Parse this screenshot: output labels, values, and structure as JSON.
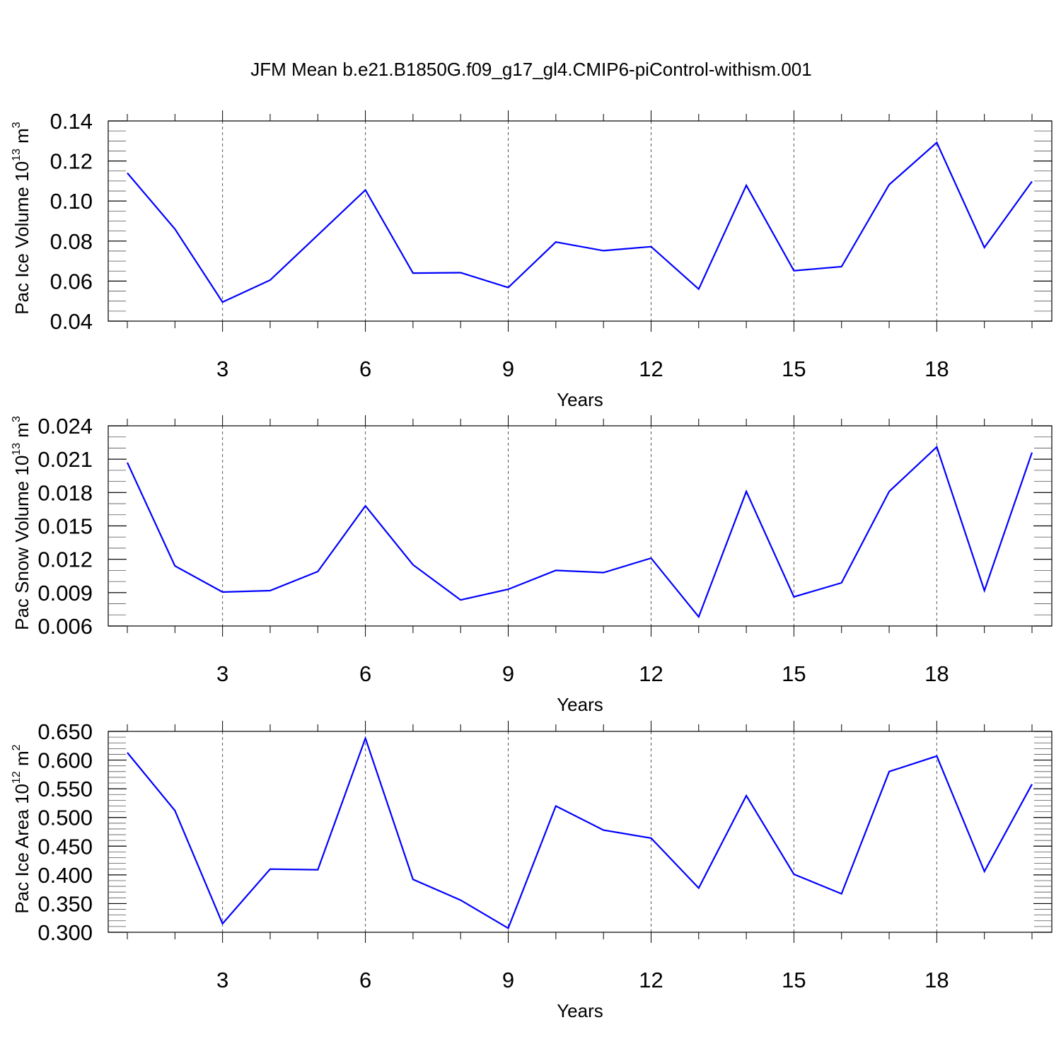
{
  "title": "JFM Mean b.e21.B1850G.f09_g17_gl4.CMIP6-piControl-withism.001",
  "colors": {
    "line": "#0000ff",
    "axis": "#000000",
    "grid": "#555555"
  },
  "chart_data": [
    {
      "type": "line",
      "xlabel": "Years",
      "ylabel_main": "Pac Ice Volume 10",
      "ylabel_exp": "13",
      "ylabel_unit": " m",
      "ylabel_unit_exp": "3",
      "xlim": [
        1,
        20
      ],
      "ylim": [
        0.04,
        0.14
      ],
      "yticks": [
        0.04,
        0.06,
        0.08,
        0.1,
        0.12,
        0.14
      ],
      "ytick_labels": [
        "0.04",
        "0.06",
        "0.08",
        "0.10",
        "0.12",
        "0.14"
      ],
      "yminor_step": 0.005,
      "xticks": [
        3,
        6,
        9,
        12,
        15,
        18
      ],
      "xtick_labels": [
        "3",
        "6",
        "9",
        "12",
        "15",
        "18"
      ],
      "x": [
        1,
        2,
        3,
        4,
        5,
        6,
        7,
        8,
        9,
        10,
        11,
        12,
        13,
        14,
        15,
        16,
        17,
        18,
        19,
        20
      ],
      "series": [
        {
          "name": "Pac Ice Volume",
          "values": [
            0.114,
            0.086,
            0.0495,
            0.0605,
            0.083,
            0.1055,
            0.064,
            0.0642,
            0.0568,
            0.0795,
            0.0752,
            0.0772,
            0.056,
            0.1078,
            0.0652,
            0.0672,
            0.1082,
            0.1292,
            0.0768,
            0.1098
          ]
        }
      ]
    },
    {
      "type": "line",
      "xlabel": "Years",
      "ylabel_main": "Pac Snow Volume 10",
      "ylabel_exp": "13",
      "ylabel_unit": " m",
      "ylabel_unit_exp": "3",
      "xlim": [
        1,
        20
      ],
      "ylim": [
        0.006,
        0.024
      ],
      "yticks": [
        0.006,
        0.009,
        0.012,
        0.015,
        0.018,
        0.021,
        0.024
      ],
      "ytick_labels": [
        "0.006",
        "0.009",
        "0.012",
        "0.015",
        "0.018",
        "0.021",
        "0.024"
      ],
      "yminor_step": 0.001,
      "xticks": [
        3,
        6,
        9,
        12,
        15,
        18
      ],
      "xtick_labels": [
        "3",
        "6",
        "9",
        "12",
        "15",
        "18"
      ],
      "x": [
        1,
        2,
        3,
        4,
        5,
        6,
        7,
        8,
        9,
        10,
        11,
        12,
        13,
        14,
        15,
        16,
        17,
        18,
        19,
        20
      ],
      "series": [
        {
          "name": "Pac Snow Volume",
          "values": [
            0.0207,
            0.0114,
            0.00905,
            0.00918,
            0.0109,
            0.0168,
            0.0115,
            0.00834,
            0.0093,
            0.011,
            0.0108,
            0.0121,
            0.00682,
            0.0181,
            0.00862,
            0.00988,
            0.0181,
            0.0221,
            0.00918,
            0.0216
          ]
        }
      ]
    },
    {
      "type": "line",
      "xlabel": "Years",
      "ylabel_main": "Pac Ice Area 10",
      "ylabel_exp": "12",
      "ylabel_unit": " m",
      "ylabel_unit_exp": "2",
      "xlim": [
        1,
        20
      ],
      "ylim": [
        0.3,
        0.65
      ],
      "yticks": [
        0.3,
        0.35,
        0.4,
        0.45,
        0.5,
        0.55,
        0.6,
        0.65
      ],
      "ytick_labels": [
        "0.300",
        "0.350",
        "0.400",
        "0.450",
        "0.500",
        "0.550",
        "0.600",
        "0.650"
      ],
      "yminor_step": 0.01,
      "xticks": [
        3,
        6,
        9,
        12,
        15,
        18
      ],
      "xtick_labels": [
        "3",
        "6",
        "9",
        "12",
        "15",
        "18"
      ],
      "x": [
        1,
        2,
        3,
        4,
        5,
        6,
        7,
        8,
        9,
        10,
        11,
        12,
        13,
        14,
        15,
        16,
        17,
        18,
        19,
        20
      ],
      "series": [
        {
          "name": "Pac Ice Area",
          "values": [
            0.613,
            0.512,
            0.315,
            0.41,
            0.409,
            0.638,
            0.392,
            0.356,
            0.307,
            0.52,
            0.478,
            0.464,
            0.377,
            0.538,
            0.401,
            0.367,
            0.58,
            0.607,
            0.406,
            0.558
          ]
        }
      ]
    }
  ]
}
